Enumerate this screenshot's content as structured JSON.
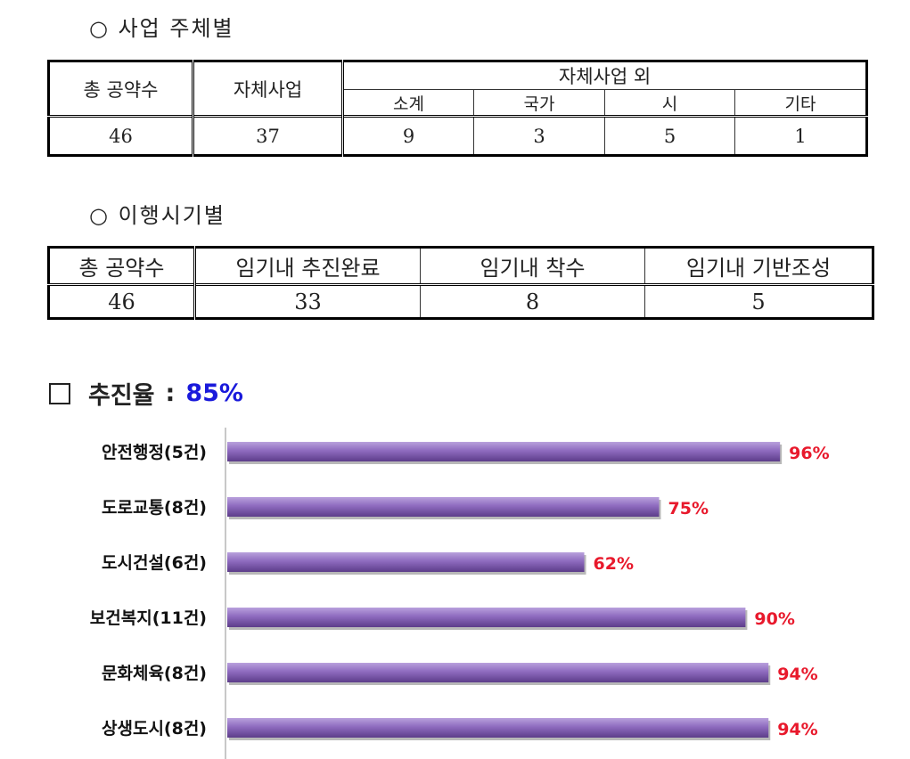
{
  "section1": {
    "heading": "○ 사업 주체별",
    "headers": {
      "total": "총 공약수",
      "self": "자체사업",
      "other_group": "자체사업 외",
      "sub": [
        "소계",
        "국가",
        "시",
        "기타"
      ]
    },
    "values": [
      "46",
      "37",
      "9",
      "3",
      "5",
      "1"
    ]
  },
  "section2": {
    "heading": "○ 이행시기별",
    "headers": [
      "총 공약수",
      "임기내 추진완료",
      "임기내 착수",
      "임기내 기반조성"
    ],
    "values": [
      "46",
      "33",
      "8",
      "5"
    ]
  },
  "rate": {
    "label": "추진율",
    "colon": ":",
    "value": "85%"
  },
  "chart_data": {
    "type": "bar",
    "orientation": "horizontal",
    "categories": [
      "안전행정(5건)",
      "도로교통(8건)",
      "도시건설(6건)",
      "보건복지(11건)",
      "문화체육(8건)",
      "상생도시(8건)"
    ],
    "values": [
      96,
      75,
      62,
      90,
      94,
      94
    ],
    "value_labels": [
      "96%",
      "75%",
      "62%",
      "90%",
      "94%",
      "94%"
    ],
    "xlim": [
      0,
      100
    ],
    "bar_color": "#8e6bbf",
    "label_color": "#e8192c"
  }
}
